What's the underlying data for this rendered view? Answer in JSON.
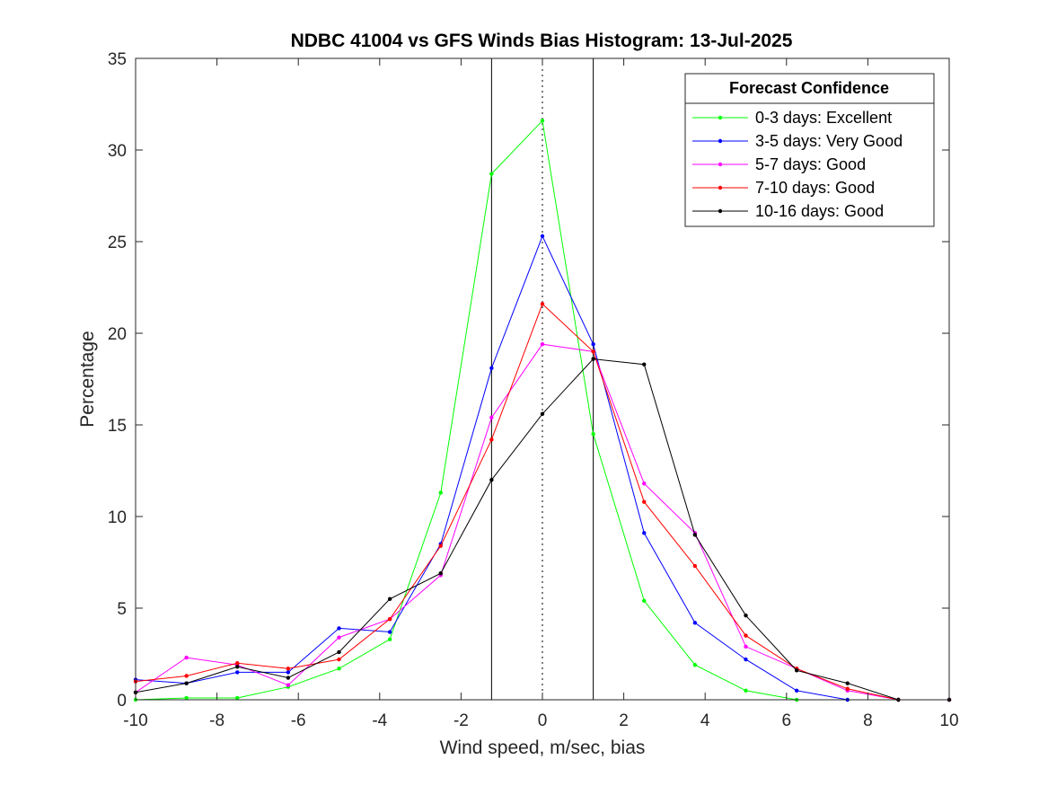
{
  "chart_data": {
    "type": "line",
    "title": "NDBC 41004 vs GFS Winds Bias Histogram: 13-Jul-2025",
    "xlabel": "Wind speed, m/sec, bias",
    "ylabel": "Percentage",
    "xlim": [
      -10,
      10
    ],
    "ylim": [
      0,
      35
    ],
    "xticks": [
      -10,
      -8,
      -6,
      -4,
      -2,
      0,
      2,
      4,
      6,
      8,
      10
    ],
    "yticks": [
      0,
      5,
      10,
      15,
      20,
      25,
      30,
      35
    ],
    "grid": false,
    "legend_placement": "top-right",
    "legend_title": "Forecast Confidence",
    "reference_lines": [
      {
        "x": -1.25,
        "style": "solid",
        "color": "#000000"
      },
      {
        "x": 0,
        "style": "dotted",
        "color": "#000000"
      },
      {
        "x": 1.25,
        "style": "solid",
        "color": "#000000"
      }
    ],
    "x": [
      -10,
      -8.75,
      -7.5,
      -6.25,
      -5,
      -3.75,
      -2.5,
      -1.25,
      0,
      1.25,
      2.5,
      3.75,
      5,
      6.25,
      7.5,
      8.75,
      10
    ],
    "series": [
      {
        "name": "0-3 days: Excellent",
        "color": "#00ff00",
        "values": [
          0,
          0.1,
          0.1,
          0.7,
          1.7,
          3.3,
          11.3,
          28.7,
          31.6,
          14.5,
          5.4,
          1.9,
          0.5,
          0,
          0,
          0,
          0
        ]
      },
      {
        "name": "3-5 days: Very Good",
        "color": "#0000ff",
        "values": [
          1.1,
          0.9,
          1.5,
          1.5,
          3.9,
          3.7,
          8.5,
          18.1,
          25.3,
          19.4,
          9.1,
          4.2,
          2.2,
          0.5,
          0,
          0,
          0
        ]
      },
      {
        "name": "5-7 days: Good",
        "color": "#ff00ff",
        "values": [
          0.4,
          2.3,
          1.9,
          0.8,
          3.4,
          4.4,
          6.8,
          15.4,
          19.4,
          19.0,
          11.8,
          9.1,
          2.9,
          1.7,
          0.5,
          0,
          0
        ]
      },
      {
        "name": "7-10 days: Good",
        "color": "#ff0000",
        "values": [
          1.0,
          1.3,
          2.0,
          1.7,
          2.2,
          4.4,
          8.4,
          14.2,
          21.6,
          19.0,
          10.8,
          7.3,
          3.5,
          1.7,
          0.6,
          0,
          0
        ]
      },
      {
        "name": "10-16 days: Good",
        "color": "#000000",
        "values": [
          0.4,
          0.9,
          1.8,
          1.2,
          2.6,
          5.5,
          6.9,
          12.0,
          15.6,
          18.6,
          18.3,
          9.0,
          4.6,
          1.6,
          0.9,
          0,
          0
        ]
      }
    ]
  }
}
